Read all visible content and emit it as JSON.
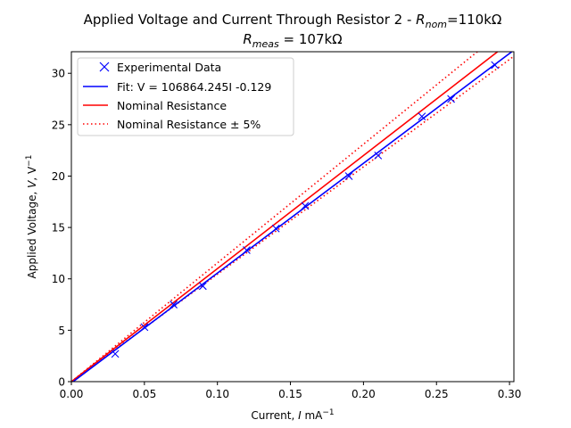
{
  "chart_data": {
    "type": "line",
    "title": {
      "line1_prefix": "Applied Voltage and Current Through Resistor 2 - ",
      "line1_symbol": "R",
      "line1_subscript": "nom",
      "line1_suffix": "=110kΩ",
      "line2_symbol": "R",
      "line2_subscript": "meas",
      "line2_suffix": " = 107kΩ"
    },
    "xlabel": {
      "text": "Current, ",
      "symbol": "I",
      "unit": " mA",
      "exponent": "−1"
    },
    "ylabel": {
      "text": "Applied Voltage, ",
      "symbol": "V",
      "unit": ", V",
      "exponent": "−1"
    },
    "xlim": [
      0,
      0.303
    ],
    "ylim": [
      0,
      32.1
    ],
    "xticks": [
      0.0,
      0.05,
      0.1,
      0.15,
      0.2,
      0.25,
      0.3
    ],
    "xtick_labels": [
      "0.00",
      "0.05",
      "0.10",
      "0.15",
      "0.20",
      "0.25",
      "0.30"
    ],
    "yticks": [
      0,
      5,
      10,
      15,
      20,
      25,
      30
    ],
    "ytick_labels": [
      "0",
      "5",
      "10",
      "15",
      "20",
      "25",
      "30"
    ],
    "grid": false,
    "legend_placement": "top-left",
    "scatter": {
      "name": "Experimental Data",
      "marker": "x",
      "color": "#0000ff",
      "x": [
        0.03,
        0.05,
        0.07,
        0.09,
        0.12,
        0.14,
        0.16,
        0.19,
        0.21,
        0.24,
        0.26,
        0.29
      ],
      "y": [
        2.7,
        5.3,
        7.5,
        9.3,
        12.8,
        14.9,
        17.1,
        20.0,
        22.0,
        25.8,
        27.5,
        30.8
      ]
    },
    "series": [
      {
        "name": "Fit: V = 106864.245I -0.129",
        "style": "solid",
        "color": "#0000ff",
        "slope": 106.864245,
        "intercept": -0.129
      },
      {
        "name": "Nominal Resistance",
        "style": "solid",
        "color": "#ff0000",
        "slope": 110,
        "intercept": 0
      },
      {
        "name": "Nominal Resistance ± 5%",
        "style": "dotted",
        "color": "#ff0000",
        "slope": 115.5,
        "intercept": 0
      },
      {
        "name": "",
        "style": "dotted",
        "color": "#ff0000",
        "slope": 104.5,
        "intercept": 0
      }
    ]
  }
}
